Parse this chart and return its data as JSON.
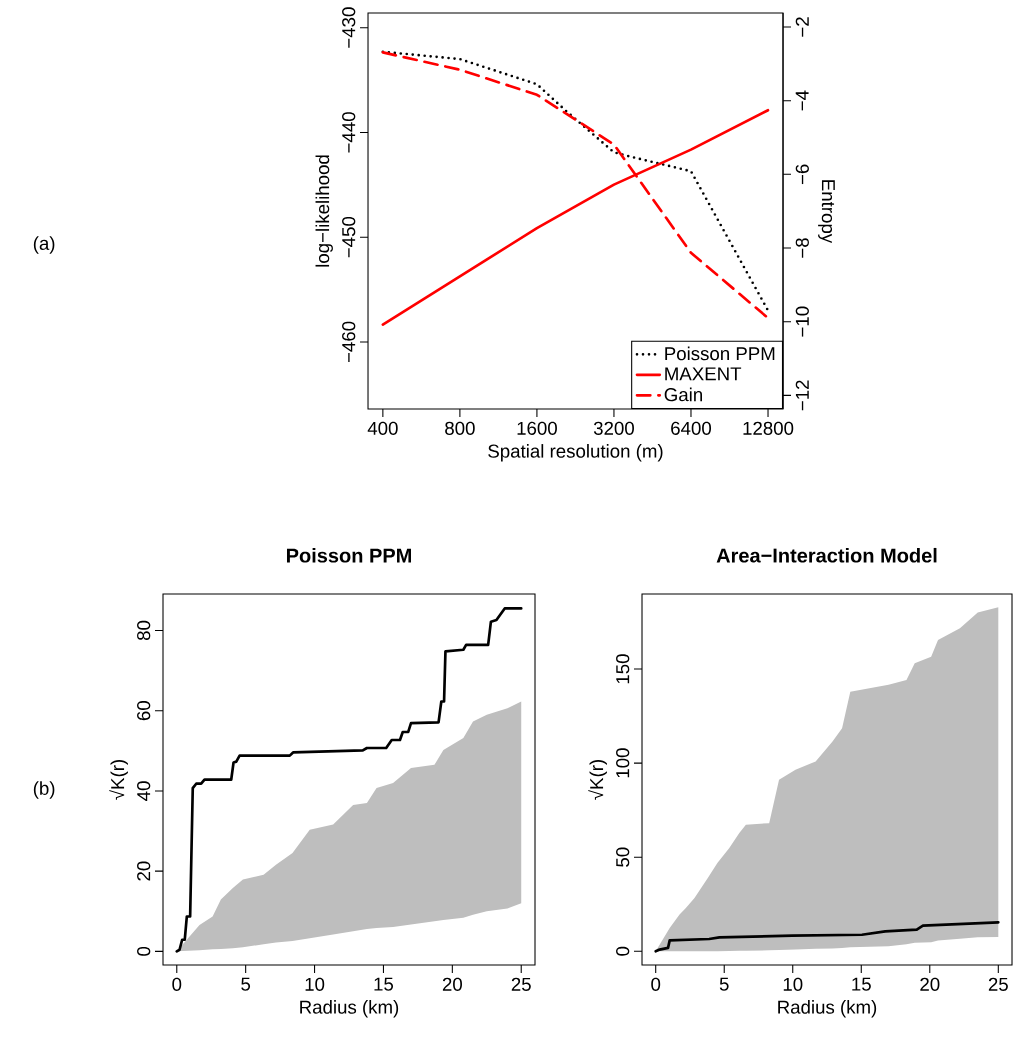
{
  "chart_data": [
    {
      "type": "line",
      "xlabel": "Spatial resolution (m)",
      "ylabel": "log−likelihood",
      "y2label": "Entropy",
      "annotations": [
        "(a)"
      ],
      "log": "x",
      "x": [
        400,
        800,
        1600,
        3200,
        6400,
        12800
      ],
      "xlim": [
        350,
        14650
      ],
      "xticks": [
        400,
        800,
        1600,
        3200,
        6400,
        12800
      ],
      "ylim": [
        -466.4,
        -428.6
      ],
      "yticks": [
        {
          "value": -430,
          "label": "−430"
        },
        {
          "value": -440,
          "label": "−440"
        },
        {
          "value": -450,
          "label": "−450"
        },
        {
          "value": -460,
          "label": "−460"
        }
      ],
      "y2lim": [
        -12.37,
        -1.62
      ],
      "y2ticks": [
        {
          "value": -2,
          "label": "−2"
        },
        {
          "value": -4,
          "label": "−4"
        },
        {
          "value": -6,
          "label": "−6"
        },
        {
          "value": -8,
          "label": "−8"
        },
        {
          "value": -10,
          "label": "−10"
        },
        {
          "value": -12,
          "label": "−12"
        }
      ],
      "legend": "bottom right",
      "series": [
        {
          "name": "Poisson PPM",
          "color": "#000000",
          "line_style": "dotted",
          "x": [
            400,
            800,
            1600,
            2090,
            3200,
            3693,
            6400,
            12800
          ],
          "values": [
            -432.3,
            -433.0,
            -435.4,
            -438.0,
            -441.9,
            -442.3,
            -443.7,
            -457.0
          ]
        },
        {
          "name": "MAXENT",
          "color": "#ff0000",
          "line_style": "solid",
          "axis": "y2",
          "values": [
            -10.08,
            -8.77,
            -7.46,
            -6.28,
            -5.33,
            -4.26
          ]
        },
        {
          "name": "Gain",
          "color": "#ff0000",
          "line_style": "dashed",
          "axis": "y2",
          "values": [
            -2.69,
            -3.16,
            -3.84,
            -5.19,
            -8.13,
            -9.9
          ]
        }
      ]
    },
    {
      "type": "line",
      "title": "Poisson PPM",
      "xlabel": "Radius (km)",
      "ylabel": "√K(r)",
      "annotations": [
        "(b)"
      ],
      "xlim": [
        -1,
        26
      ],
      "xticks": [
        0,
        5,
        10,
        15,
        20,
        25
      ],
      "ylim": [
        -3.4,
        89.1
      ],
      "yticks": [
        0,
        20,
        40,
        60,
        80
      ],
      "series": [
        {
          "type": "area",
          "color": "#bebebe",
          "values": [
            null,
            null,
            null,
            null,
            null,
            null,
            null,
            null,
            null,
            null,
            null,
            null,
            null,
            null,
            null,
            null,
            null,
            null,
            null,
            null,
            null,
            null,
            null
          ],
          "x": [
            0,
            1.65,
            2.6,
            3.2,
            4.07,
            4.8,
            6.3,
            7.2,
            8.4,
            9.65,
            11.35,
            12.8,
            13.8,
            14.5,
            15.7,
            17.0,
            18.7,
            19.35,
            20.8,
            21.5,
            22.5,
            24.0,
            25
          ],
          "upper": [
            0,
            6.6,
            8.7,
            12.9,
            15.8,
            17.9,
            19.1,
            21.6,
            24.5,
            30.3,
            31.6,
            36.5,
            37.0,
            40.7,
            42.0,
            45.7,
            46.5,
            50.2,
            53.2,
            57.3,
            59.0,
            60.6,
            62.3
          ],
          "lower": [
            0,
            0.3,
            0.5,
            0.6,
            0.8,
            1.0,
            1.8,
            2.2,
            2.6,
            3.3,
            4.2,
            5.0,
            5.6,
            5.8,
            6.1,
            6.7,
            7.5,
            7.8,
            8.4,
            9.1,
            10.0,
            10.7,
            12.0
          ]
        },
        {
          "type": "line",
          "color": "#000000",
          "x": [
            0,
            0.2,
            0.39,
            0.58,
            0.73,
            0.97,
            1.16,
            1.41,
            1.77,
            2.01,
            3.95,
            4.12,
            4.32,
            4.56,
            8.2,
            8.44,
            13.5,
            13.8,
            15.2,
            15.6,
            16.2,
            16.4,
            16.8,
            17.0,
            19.0,
            19.2,
            19.4,
            19.5,
            20.8,
            21.0,
            22.6,
            22.8,
            23.2,
            23.8,
            25
          ],
          "values": [
            0,
            0.4,
            2.9,
            2.9,
            8.7,
            8.7,
            40.7,
            41.8,
            41.8,
            42.8,
            42.8,
            47.1,
            47.3,
            48.8,
            48.8,
            49.6,
            50.1,
            50.7,
            50.7,
            52.7,
            52.7,
            54.7,
            54.7,
            56.9,
            57.1,
            62.3,
            62.3,
            74.8,
            75.2,
            76.4,
            76.4,
            82.2,
            82.6,
            85.5,
            85.5
          ]
        }
      ]
    },
    {
      "type": "line",
      "title": "Area−Interaction Model",
      "xlabel": "Radius (km)",
      "ylabel": "√K(r)",
      "xlim": [
        -1,
        26
      ],
      "xticks": [
        0,
        5,
        10,
        15,
        20,
        25
      ],
      "ylim": [
        -7.3,
        189.9
      ],
      "yticks": [
        0,
        50,
        100,
        150
      ],
      "series": [
        {
          "type": "area",
          "color": "#bebebe",
          "values": [
            null,
            null,
            null,
            null,
            null,
            null,
            null,
            null,
            null,
            null,
            null,
            null,
            null,
            null,
            null,
            null,
            null,
            null,
            null,
            null,
            null,
            null,
            null,
            null,
            null
          ],
          "x": [
            0,
            1.02,
            1.74,
            2.2,
            2.83,
            3.8,
            4.5,
            5.37,
            6.1,
            6.58,
            8.28,
            9.0,
            10.2,
            11.67,
            12.9,
            13.6,
            14.2,
            16.99,
            18.3,
            18.9,
            20.1,
            20.6,
            22.2,
            23.5,
            25
          ],
          "upper": [
            0,
            12.4,
            19.5,
            23,
            28.3,
            39,
            46.9,
            54.9,
            62.8,
            67.3,
            68.1,
            91.2,
            96.5,
            100.9,
            111.5,
            118.6,
            138,
            141.6,
            144.2,
            153.1,
            156.6,
            165.5,
            171.7,
            180,
            182.8
          ],
          "lower": [
            0,
            0,
            0,
            0,
            0,
            0,
            0,
            0.2,
            0.3,
            0.3,
            0.5,
            0.7,
            1.0,
            1.3,
            1.5,
            1.7,
            2.2,
            2.7,
            3.7,
            4.5,
            4.8,
            5.7,
            6.6,
            7.5,
            7.6
          ]
        },
        {
          "type": "line",
          "color": "#000000",
          "x": [
            0,
            0.29,
            0.9,
            1.02,
            3.9,
            4.65,
            9.97,
            15.05,
            16.75,
            19.05,
            19.5,
            25
          ],
          "values": [
            0,
            0.9,
            1.8,
            5.8,
            6.5,
            7.4,
            8.3,
            8.8,
            10.6,
            11.5,
            13.6,
            15.4
          ]
        }
      ]
    }
  ]
}
